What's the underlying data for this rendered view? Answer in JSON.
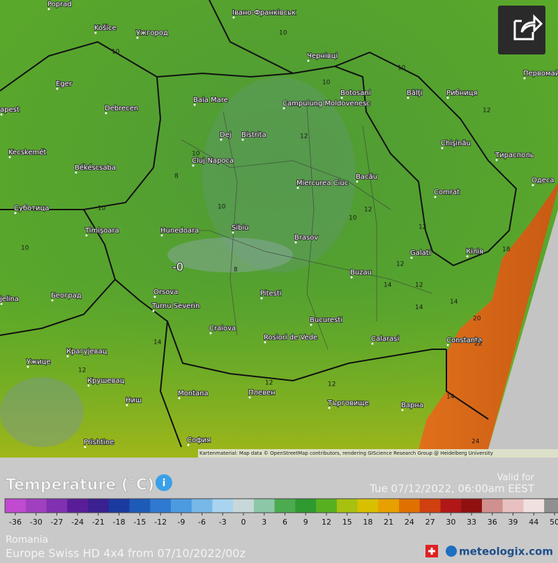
{
  "map": {
    "cities": [
      "Poprad",
      "Košice",
      "Ужгород",
      "Івано-Франківськ",
      "Чернівці",
      "Eger",
      "Debrecen",
      "Baia Mare",
      "Campulung Moldovenesc",
      "Botosani",
      "Bălţi",
      "Рибниця",
      "Первомайськ",
      "apest",
      "Kecskemét",
      "Dej",
      "Bistrita",
      "Cluj-Napoca",
      "Békéscsaba",
      "Chişinău",
      "Тирасполь",
      "Miercurea Ciuc",
      "Bacău",
      "Одеса",
      "Суботица",
      "Timişoara",
      "Hunedoara",
      "Sibiu",
      "Brasov",
      "Comrat",
      "Galati",
      "Кілія",
      "Београд",
      "Buzau",
      "Orsova",
      "Turnu Severin",
      "Pitesti",
      "Bucuresti",
      "Craiova",
      "Rosiori de Vede",
      "Calarasi",
      "Constanta",
      "Крагујевац",
      "Ужице",
      "Крушевац",
      "Montana",
      "Плевен",
      "Търговище",
      "Варна",
      "Ниш",
      "Prishtine",
      "София",
      "jelina"
    ],
    "temperatures": [
      10,
      10,
      10,
      10,
      12,
      10,
      8,
      10,
      10,
      12,
      12,
      14,
      18,
      20,
      22,
      24,
      12,
      14,
      14,
      12,
      12,
      8,
      10,
      14,
      12,
      12,
      14,
      10,
      12
    ],
    "min_label": "-0",
    "attribution": "Kartenmaterial: Map data © OpenStreetMap contributors, rendering GIScience Research Group @ Heidelberg University"
  },
  "legend": {
    "title": "Temperature (°C)",
    "valid_label": "Valid for",
    "valid_time": "Tue 07/12/2022, 06:00am EEST",
    "ticks": [
      -36,
      -30,
      -27,
      -24,
      -21,
      -18,
      -15,
      -12,
      -9,
      -6,
      -3,
      0,
      3,
      6,
      9,
      12,
      15,
      18,
      21,
      24,
      27,
      30,
      33,
      36,
      39,
      44,
      50
    ],
    "colors": [
      "#c04ad0",
      "#a040c0",
      "#8030b0",
      "#5a1d9a",
      "#3a2090",
      "#1a3aa0",
      "#1e5ab8",
      "#2f7ad0",
      "#4c9ae0",
      "#78b8e8",
      "#a8d4f0",
      "#c8d8d8",
      "#8cc8a8",
      "#4caa50",
      "#2e9a30",
      "#58b020",
      "#a8c010",
      "#d8c000",
      "#e8a000",
      "#e07000",
      "#d04010",
      "#b01818",
      "#901010",
      "#d09090",
      "#e8c0c0",
      "#f0e0e0",
      "#909090"
    ]
  },
  "footer": {
    "region": "Romania",
    "model": "Europe Swiss HD 4x4 from 07/10/2022/00z",
    "brand": "meteologix.com"
  }
}
